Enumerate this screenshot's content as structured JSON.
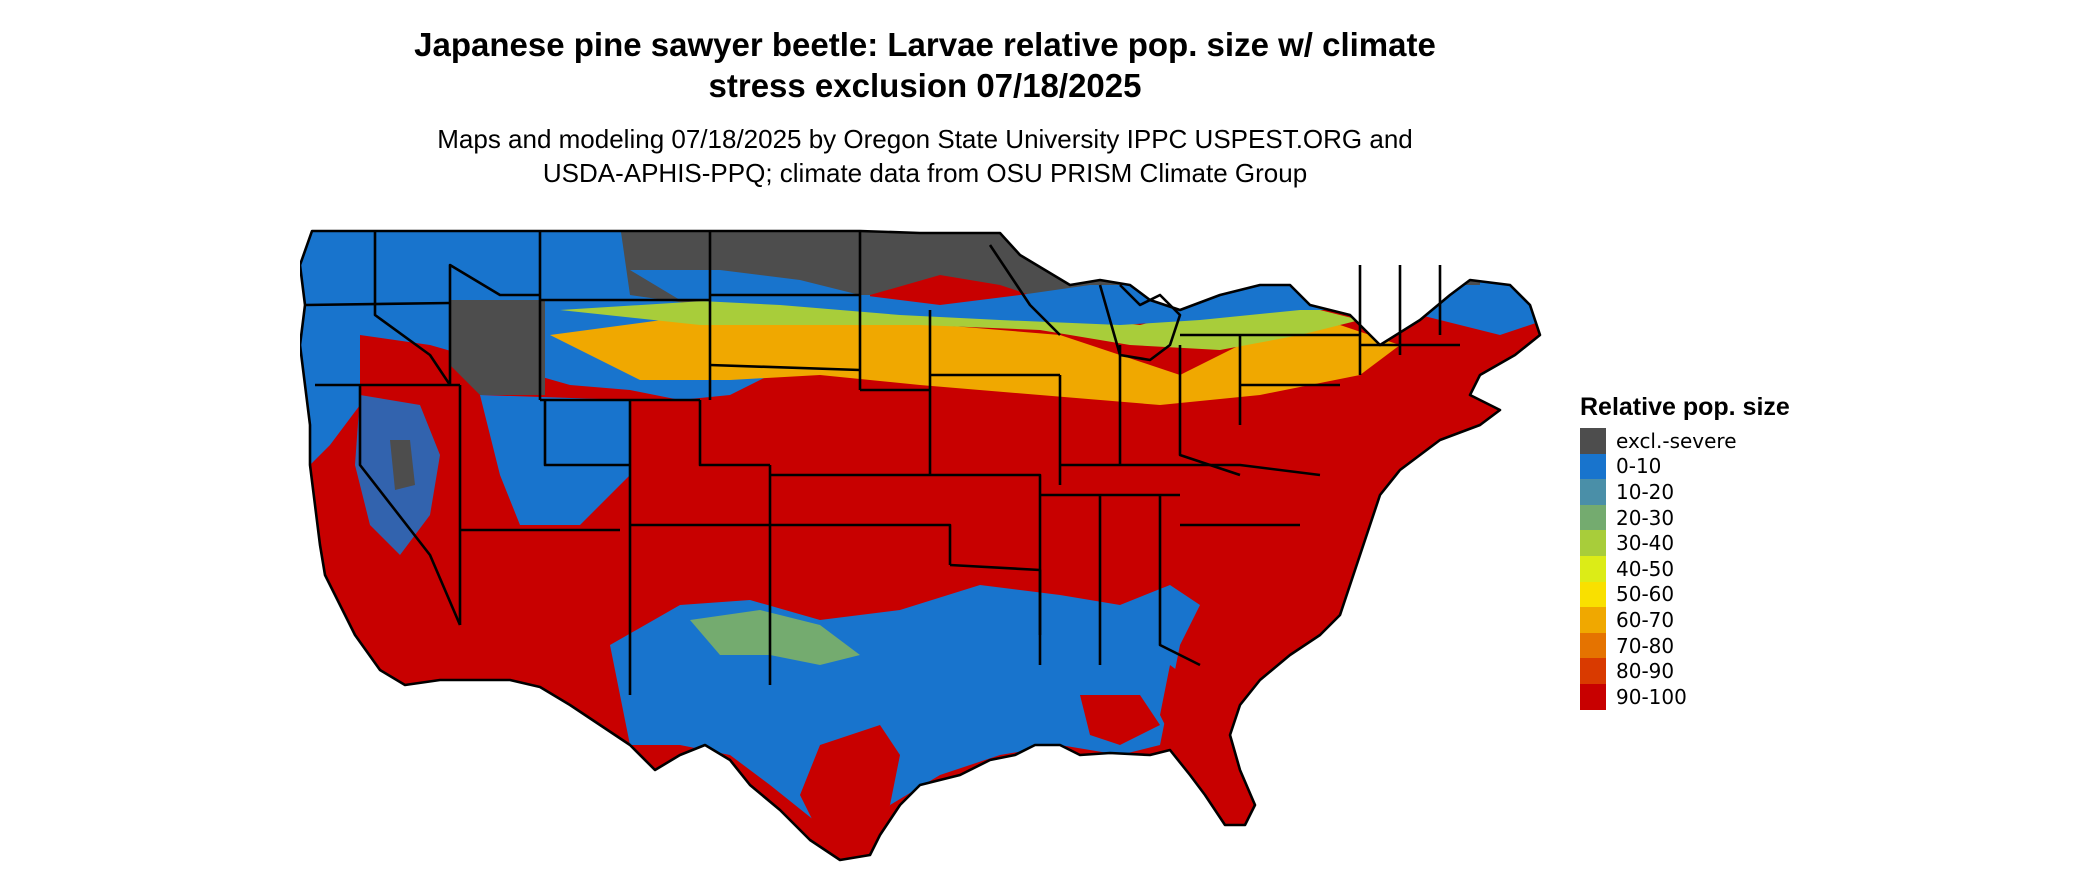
{
  "title": {
    "line1": "Japanese pine sawyer beetle: Larvae relative pop. size w/ climate",
    "line2": "stress exclusion 07/18/2025"
  },
  "subtitle": {
    "line1": "Maps and modeling 07/18/2025 by Oregon State University IPPC USPEST.ORG and",
    "line2": "USDA-APHIS-PPQ; climate data from OSU PRISM Climate Group"
  },
  "legend": {
    "title": "Relative pop. size",
    "items": [
      {
        "label": "excl.-severe",
        "color": "#4d4d4d"
      },
      {
        "label": "0-10",
        "color": "#1874cd"
      },
      {
        "label": "10-20",
        "color": "#4a8fa8"
      },
      {
        "label": "20-30",
        "color": "#74ab6f"
      },
      {
        "label": "30-40",
        "color": "#a8cd3a"
      },
      {
        "label": "40-50",
        "color": "#dcec17"
      },
      {
        "label": "50-60",
        "color": "#f9e000"
      },
      {
        "label": "60-70",
        "color": "#f0a800"
      },
      {
        "label": "70-80",
        "color": "#e57300"
      },
      {
        "label": "80-90",
        "color": "#d93a00"
      },
      {
        "label": "90-100",
        "color": "#c80000"
      }
    ]
  },
  "map": {
    "region": "contiguous-united-states",
    "boundaries": "state-outlines",
    "boundary_color": "#000000"
  }
}
